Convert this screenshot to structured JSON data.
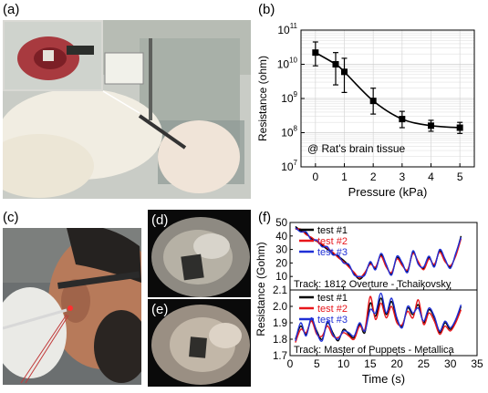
{
  "panels": {
    "a": "(a)",
    "b": "(b)",
    "c": "(c)",
    "d": "(d)",
    "e": "(e)",
    "f": "(f)"
  },
  "colors": {
    "black": "#000000",
    "red": "#e8161b",
    "blue": "#1f2fd6"
  },
  "chart_data": [
    {
      "id": "b",
      "type": "line",
      "xlabel": "Pressure (kPa)",
      "ylabel": "Resistance (ohm)",
      "yscale": "log",
      "xlim": [
        -0.5,
        5.5
      ],
      "ylim": [
        10000000,
        100000000000
      ],
      "xticks": [
        "0",
        "1",
        "2",
        "3",
        "4",
        "5"
      ],
      "yticks": [
        {
          "base": "10",
          "exp": "7"
        },
        {
          "base": "10",
          "exp": "8"
        },
        {
          "base": "10",
          "exp": "9"
        },
        {
          "base": "10",
          "exp": "10"
        },
        {
          "base": "10",
          "exp": "11"
        }
      ],
      "grid": true,
      "annotation": "@ Rat's brain tissue",
      "points": [
        {
          "x": 0,
          "y": 22000000000,
          "lo": 9000000000,
          "hi": 45000000000
        },
        {
          "x": 0.7,
          "y": 10000000000,
          "lo": 2500000000,
          "hi": 22000000000
        },
        {
          "x": 1,
          "y": 6000000000,
          "lo": 1500000000,
          "hi": 15000000000
        },
        {
          "x": 2,
          "y": 850000000,
          "lo": 350000000,
          "hi": 2000000000
        },
        {
          "x": 3,
          "y": 250000000,
          "lo": 140000000,
          "hi": 420000000
        },
        {
          "x": 4,
          "y": 160000000,
          "lo": 110000000,
          "hi": 230000000
        },
        {
          "x": 5,
          "y": 140000000,
          "lo": 95000000,
          "hi": 200000000
        }
      ]
    },
    {
      "id": "f",
      "type": "line",
      "xlabel": "Time (s)",
      "ylabel": "Resistance (Gohm)",
      "xlim": [
        0,
        35
      ],
      "xticks": [
        "0",
        "5",
        "10",
        "15",
        "20",
        "25",
        "30",
        "35"
      ],
      "subplots": [
        {
          "track": "Track: 1812 Overture - Tchaikovsky",
          "ylim": [
            0,
            50
          ],
          "yticks": [
            "0",
            "10",
            "20",
            "30",
            "40",
            "50"
          ],
          "x": [
            1,
            2,
            3,
            4,
            5,
            6,
            7,
            8,
            9,
            10,
            11,
            12,
            13,
            14,
            15,
            16,
            17,
            18,
            19,
            20,
            21,
            22,
            23,
            24,
            25,
            26,
            27,
            28,
            29,
            30,
            31,
            32
          ],
          "series": [
            {
              "name": "test #1",
              "color": "#000000",
              "values": [
                47,
                44,
                42,
                38,
                36,
                33,
                30,
                27,
                25,
                22,
                18,
                12,
                8,
                12,
                20,
                16,
                26,
                18,
                12,
                24,
                19,
                14,
                28,
                20,
                16,
                24,
                18,
                29,
                22,
                17,
                26,
                40
              ]
            },
            {
              "name": "test #2",
              "color": "#e8161b",
              "values": [
                45,
                45,
                41,
                39,
                36,
                34,
                31,
                28,
                24,
                21,
                17,
                13,
                9,
                13,
                19,
                17,
                25,
                17,
                13,
                23,
                18,
                15,
                27,
                21,
                15,
                23,
                19,
                28,
                21,
                18,
                25,
                38
              ]
            },
            {
              "name": "test #3",
              "color": "#1f2fd6",
              "values": [
                46,
                43,
                43,
                37,
                37,
                32,
                32,
                26,
                26,
                20,
                19,
                11,
                10,
                11,
                21,
                15,
                27,
                19,
                11,
                25,
                20,
                13,
                29,
                19,
                17,
                25,
                17,
                30,
                23,
                16,
                27,
                39
              ]
            }
          ]
        },
        {
          "track": "Track: Master of Puppets - Metallica",
          "ylim": [
            1.7,
            2.1
          ],
          "yticks": [
            "1.7",
            "1.8",
            "1.9",
            "2.0",
            "2.1"
          ],
          "x": [
            1,
            2,
            3,
            4,
            5,
            6,
            7,
            8,
            9,
            10,
            11,
            12,
            13,
            14,
            15,
            16,
            17,
            18,
            19,
            20,
            21,
            22,
            23,
            24,
            25,
            26,
            27,
            28,
            29,
            30,
            31,
            32
          ],
          "series": [
            {
              "name": "test #1",
              "color": "#000000",
              "values": [
                1.8,
                1.88,
                1.83,
                1.92,
                1.85,
                1.8,
                1.9,
                1.84,
                1.79,
                1.86,
                1.83,
                1.81,
                1.89,
                1.84,
                2.02,
                1.94,
                2.05,
                1.95,
                2.03,
                1.92,
                1.88,
                1.99,
                1.95,
                2.01,
                1.9,
                1.98,
                1.93,
                1.84,
                1.9,
                1.86,
                1.91,
                2.0
              ]
            },
            {
              "name": "test #2",
              "color": "#e8161b",
              "values": [
                1.78,
                1.86,
                1.84,
                1.91,
                1.83,
                1.82,
                1.88,
                1.82,
                1.81,
                1.84,
                1.82,
                1.8,
                1.88,
                1.86,
                2.06,
                1.92,
                2.02,
                1.93,
                2.0,
                1.9,
                1.89,
                1.97,
                1.93,
                2.04,
                1.89,
                1.96,
                1.91,
                1.83,
                1.88,
                1.85,
                1.9,
                1.98
              ]
            },
            {
              "name": "test #3",
              "color": "#1f2fd6",
              "values": [
                1.79,
                1.9,
                1.82,
                1.93,
                1.84,
                1.79,
                1.91,
                1.83,
                1.8,
                1.85,
                1.84,
                1.82,
                1.9,
                1.85,
                1.98,
                1.96,
                2.08,
                1.96,
                2.05,
                1.93,
                1.87,
                2.0,
                1.96,
                1.99,
                1.91,
                1.99,
                1.94,
                1.85,
                1.91,
                1.87,
                1.92,
                2.01
              ]
            }
          ]
        }
      ]
    }
  ]
}
